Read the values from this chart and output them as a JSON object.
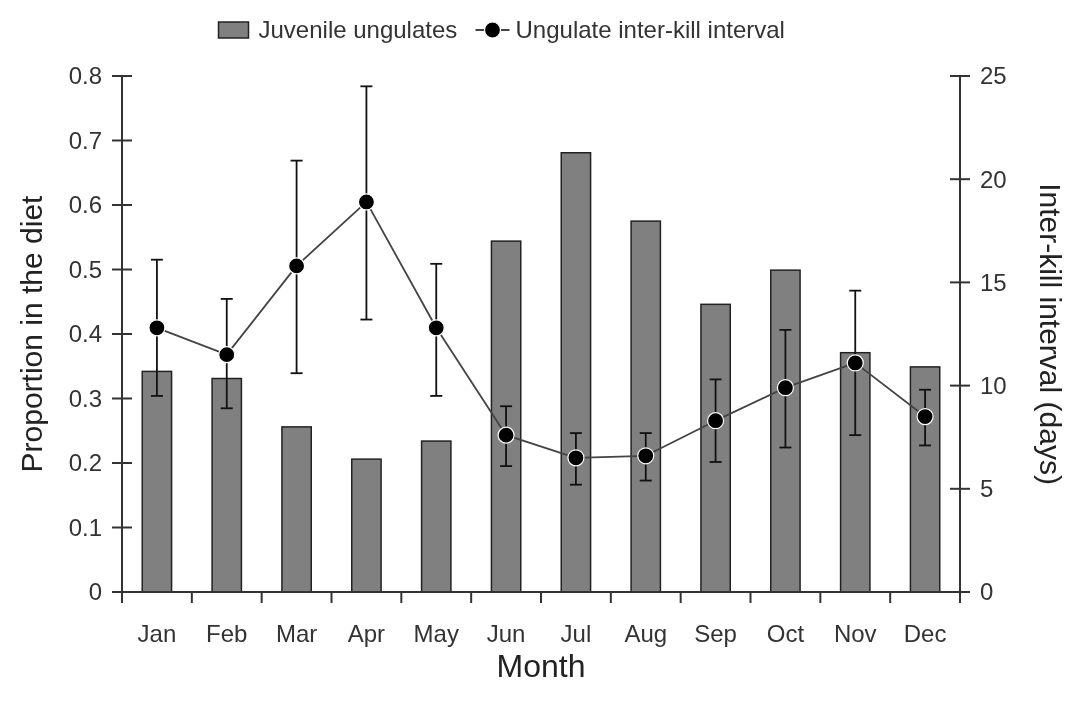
{
  "chart_data": {
    "type": "bar",
    "xlabel": "Month",
    "ylabel": "Proportion in the diet",
    "y2label": "Inter-kill interval (days)",
    "categories": [
      "Jan",
      "Feb",
      "Mar",
      "Apr",
      "May",
      "Jun",
      "Jul",
      "Aug",
      "Sep",
      "Oct",
      "Nov",
      "Dec"
    ],
    "series": [
      {
        "name": "Juvenile ungulates",
        "color": "#808080",
        "values": [
          0.342,
          0.331,
          0.256,
          0.206,
          0.234,
          0.544,
          0.681,
          0.575,
          0.446,
          0.499,
          0.371,
          0.349
        ]
      },
      {
        "name": "Ungulate inter-kill interval",
        "type": "line",
        "axis": "y2",
        "color": "#000000",
        "marker": "circle",
        "values": [
          12.8,
          11.5,
          15.8,
          18.9,
          12.8,
          7.6,
          6.5,
          6.6,
          8.3,
          9.9,
          11.1,
          8.5
        ],
        "errors": [
          [
            9.5,
            16.1
          ],
          [
            8.9,
            14.2
          ],
          [
            10.6,
            20.9
          ],
          [
            13.2,
            24.5
          ],
          [
            9.5,
            15.9
          ],
          [
            6.1,
            9.0
          ],
          [
            5.2,
            7.7
          ],
          [
            5.4,
            7.7
          ],
          [
            6.3,
            10.3
          ],
          [
            7.0,
            12.7
          ],
          [
            7.6,
            14.6
          ],
          [
            7.1,
            9.8
          ]
        ]
      }
    ],
    "ylim": [
      0,
      0.8
    ],
    "yticks": [
      0,
      0.1,
      0.2,
      0.3,
      0.4,
      0.5,
      0.6,
      0.7,
      0.8
    ],
    "y2lim": [
      0,
      25
    ],
    "y2ticks": [
      0,
      5,
      10,
      15,
      20,
      25
    ],
    "grid": false,
    "legend": "top"
  }
}
